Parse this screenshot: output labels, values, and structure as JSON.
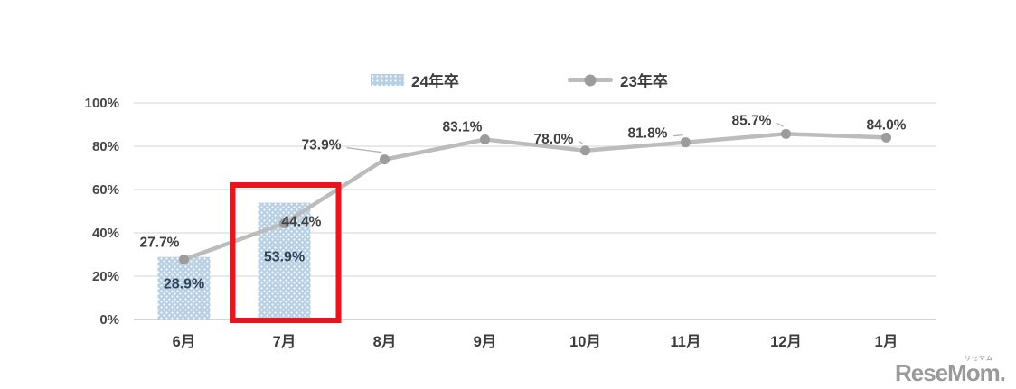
{
  "watermark": {
    "text": "ReseMom.",
    "ruby": "リセマム",
    "color": "#9a9a9a"
  },
  "chart_data": {
    "type": "combo",
    "title": "",
    "categories": [
      "6月",
      "7月",
      "8月",
      "9月",
      "10月",
      "11月",
      "12月",
      "1月"
    ],
    "series": [
      {
        "name": "24年卒",
        "type": "bar",
        "color": "#b7cfe2",
        "pattern": "white-dots",
        "label_color": "#2e4459",
        "points": [
          {
            "category": "6月",
            "value": 28.9,
            "label": "28.9%",
            "label_dy": 35
          },
          {
            "category": "7月",
            "value": 53.9,
            "label": "53.9%",
            "label_dy": 65
          }
        ]
      },
      {
        "name": "23年卒",
        "type": "line",
        "color": "#bcbcbc",
        "marker_color": "#9c9c9c",
        "label_color": "#3f3f3f",
        "points": [
          {
            "category": "6月",
            "value": 27.7,
            "label": "27.7%",
            "dx": -27,
            "dy": -19,
            "leader": false
          },
          {
            "category": "7月",
            "value": 44.4,
            "label": "44.4%",
            "dx": 19,
            "dy": -2,
            "leader": false
          },
          {
            "category": "8月",
            "value": 73.9,
            "label": "73.9%",
            "dx": -70,
            "dy": -16,
            "leader": true
          },
          {
            "category": "9月",
            "value": 83.1,
            "label": "83.1%",
            "dx": -25,
            "dy": -14,
            "leader": false
          },
          {
            "category": "10月",
            "value": 78.0,
            "label": "78.0%",
            "dx": -35,
            "dy": -13,
            "leader": true
          },
          {
            "category": "11月",
            "value": 81.8,
            "label": "81.8%",
            "dx": -42,
            "dy": -10,
            "leader": true
          },
          {
            "category": "12月",
            "value": 85.7,
            "label": "85.7%",
            "dx": -38,
            "dy": -15,
            "leader": true
          },
          {
            "category": "1月",
            "value": 84.0,
            "label": "84.0%",
            "dx": 0,
            "dy": -14,
            "leader": false
          }
        ]
      }
    ],
    "ylim": [
      0,
      100
    ],
    "yticks": [
      {
        "value": 0,
        "label": "0%"
      },
      {
        "value": 20,
        "label": "20%"
      },
      {
        "value": 40,
        "label": "40%"
      },
      {
        "value": 60,
        "label": "60%"
      },
      {
        "value": 80,
        "label": "80%"
      },
      {
        "value": 100,
        "label": "100%"
      }
    ],
    "grid": true,
    "legend_position": "top",
    "annotation": {
      "type": "highlight-box",
      "category": "7月",
      "color": "#e9151b"
    },
    "colors": {
      "grid": "#dcdcdc",
      "axis_line": "#c6c6c6",
      "tick_text": "#474747",
      "xtick_text": "#3c3c3c"
    }
  }
}
